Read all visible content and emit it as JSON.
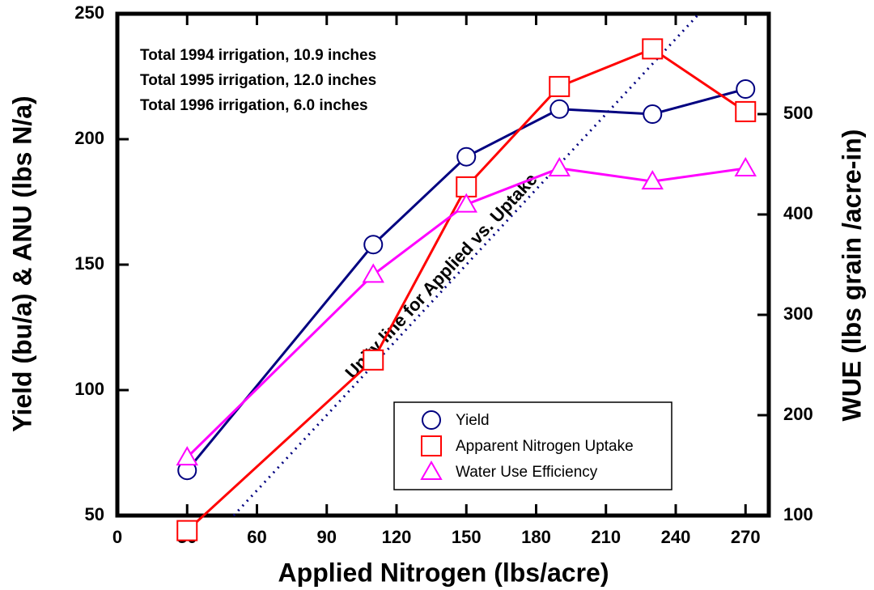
{
  "chart_data": {
    "type": "line",
    "x_label": "Applied Nitrogen (lbs/acre)",
    "y_label": "Yield (bu/a) & ANU (lbs N/a)",
    "y2_label": "WUE (lbs grain /acre-in)",
    "x": [
      30,
      110,
      150,
      190,
      230,
      270
    ],
    "xlim": [
      0,
      280
    ],
    "xticks": [
      0,
      30,
      60,
      90,
      120,
      150,
      180,
      210,
      240,
      270
    ],
    "ylim": [
      50,
      250
    ],
    "yticks": [
      50,
      100,
      150,
      200,
      250
    ],
    "y2lim": [
      100,
      600
    ],
    "y2ticks": [
      100,
      200,
      300,
      400,
      500
    ],
    "legend": "lower right",
    "annotations": [
      "Total 1994 irrigation, 10.9 inches",
      "Total 1995 irrigation, 12.0 inches",
      "Total 1996 irrigation,  6.0 inches"
    ],
    "series": [
      {
        "name": "Yield",
        "color": "#000080",
        "marker": "circle",
        "values": [
          68,
          158,
          193,
          212,
          210,
          220
        ]
      },
      {
        "name": "Apparent Nitrogen Uptake",
        "color": "#ff0000",
        "marker": "square",
        "values": [
          44,
          112,
          181,
          221,
          236,
          211
        ]
      },
      {
        "name": "Water Use Efficiency",
        "color": "#ff00ff",
        "marker": "triangle",
        "axis": "y2",
        "values": [
          158,
          340,
          410,
          446,
          433,
          446
        ]
      }
    ],
    "reference_line": {
      "name": "Unity line for Applied vs. Uptake",
      "color": "#000080",
      "x": [
        50,
        250
      ],
      "values": [
        50,
        250
      ]
    }
  }
}
